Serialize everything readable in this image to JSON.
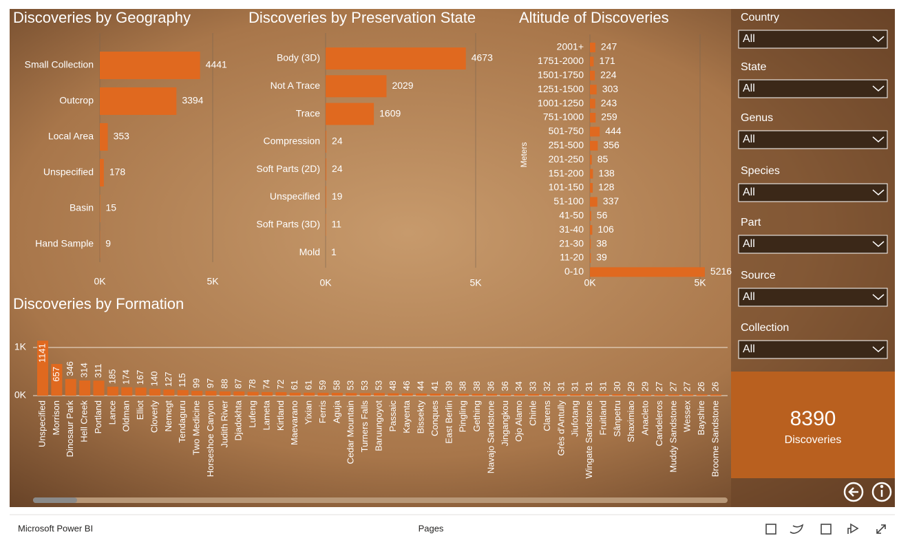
{
  "chart_data": [
    {
      "type": "bar",
      "title": "Discoveries by Geography",
      "color": "#e0691f",
      "categories": [
        "Small Collection",
        "Outcrop",
        "Local Area",
        "Unspecified",
        "Basin",
        "Hand Sample"
      ],
      "values": [
        4441,
        3394,
        353,
        178,
        15,
        9
      ],
      "xlim": [
        0,
        5000
      ],
      "xticks": [
        {
          "value": 0,
          "label": "0K"
        },
        {
          "value": 5000,
          "label": "5K"
        }
      ]
    },
    {
      "type": "bar",
      "title": "Discoveries by Preservation State",
      "color": "#e0691f",
      "categories": [
        "Body (3D)",
        "Not A Trace",
        "Trace",
        "Compression",
        "Soft Parts (2D)",
        "Unspecified",
        "Soft Parts (3D)",
        "Mold"
      ],
      "values": [
        4673,
        2029,
        1609,
        24,
        24,
        19,
        11,
        1
      ],
      "xlim": [
        0,
        5000
      ],
      "xticks": [
        {
          "value": 0,
          "label": "0K"
        },
        {
          "value": 5000,
          "label": "5K"
        }
      ]
    },
    {
      "type": "bar",
      "title": "Altitude of Discoveries",
      "y_label": "Meters",
      "color": "#e0691f",
      "categories": [
        "2001+",
        "1751-2000",
        "1501-1750",
        "1251-1500",
        "1001-1250",
        "751-1000",
        "501-750",
        "251-500",
        "201-250",
        "151-200",
        "101-150",
        "51-100",
        "41-50",
        "31-40",
        "21-30",
        "11-20",
        "0-10"
      ],
      "values": [
        247,
        171,
        224,
        303,
        243,
        259,
        444,
        356,
        85,
        138,
        128,
        337,
        56,
        106,
        38,
        39,
        5216
      ],
      "xlim": [
        0,
        5300
      ],
      "xticks": [
        {
          "value": 0,
          "label": "0K"
        },
        {
          "value": 5000,
          "label": "5K"
        }
      ]
    },
    {
      "type": "column",
      "title": "Discoveries by Formation",
      "color": "#e0691f",
      "categories": [
        "Unspecified",
        "Morrison",
        "Dinosaur Park",
        "Hell Creek",
        "Portland",
        "Lance",
        "Oldman",
        "Elliot",
        "Cloverly",
        "Nemegt",
        "Tendaguru",
        "Two Medicine",
        "Horseshoe Canyon",
        "Judith River",
        "Djadokhta",
        "Lufeng",
        "Lameta",
        "Kirtland",
        "Maevarano",
        "Yixian",
        "Ferris",
        "Aguja",
        "Cedar Mountain",
        "Turners Falls",
        "Baruungoyot",
        "Passaic",
        "Kayenta",
        "Bissekty",
        "Conques",
        "East Berlin",
        "Pingling",
        "Gething",
        "Navajo Sandstone",
        "Jingangkou",
        "Ojo Alamo",
        "Chinle",
        "Clarens",
        "Grès d'Antully",
        "Jiufotang",
        "Wingate Sandstone",
        "Fruitland",
        "Sânpetru",
        "Shaximiao",
        "Anacleto",
        "Candeleros",
        "Muddy Sandstone",
        "Wessex",
        "Bayshire",
        "Broome Sandstone"
      ],
      "values": [
        1141,
        657,
        346,
        314,
        311,
        185,
        174,
        167,
        140,
        127,
        115,
        99,
        97,
        88,
        87,
        78,
        74,
        72,
        61,
        61,
        59,
        58,
        53,
        53,
        53,
        48,
        46,
        44,
        41,
        39,
        38,
        38,
        36,
        36,
        34,
        33,
        32,
        31,
        31,
        31,
        31,
        30,
        29,
        29,
        27,
        27,
        27,
        26,
        26
      ],
      "ylim": [
        0,
        1150
      ],
      "yticks": [
        {
          "value": 0,
          "label": "0K"
        },
        {
          "value": 1000,
          "label": "1K"
        }
      ],
      "grid": true
    }
  ],
  "slicers": [
    {
      "label": "Country",
      "value": "All"
    },
    {
      "label": "State",
      "value": "All"
    },
    {
      "label": "Genus",
      "value": "All"
    },
    {
      "label": "Species",
      "value": "All"
    },
    {
      "label": "Part",
      "value": "All"
    },
    {
      "label": "Source",
      "value": "All"
    },
    {
      "label": "Collection",
      "value": "All"
    }
  ],
  "card": {
    "value": 8390,
    "label": "Discoveries"
  },
  "footer": {
    "brand": "Microsoft Power BI",
    "pages": "Pages"
  }
}
